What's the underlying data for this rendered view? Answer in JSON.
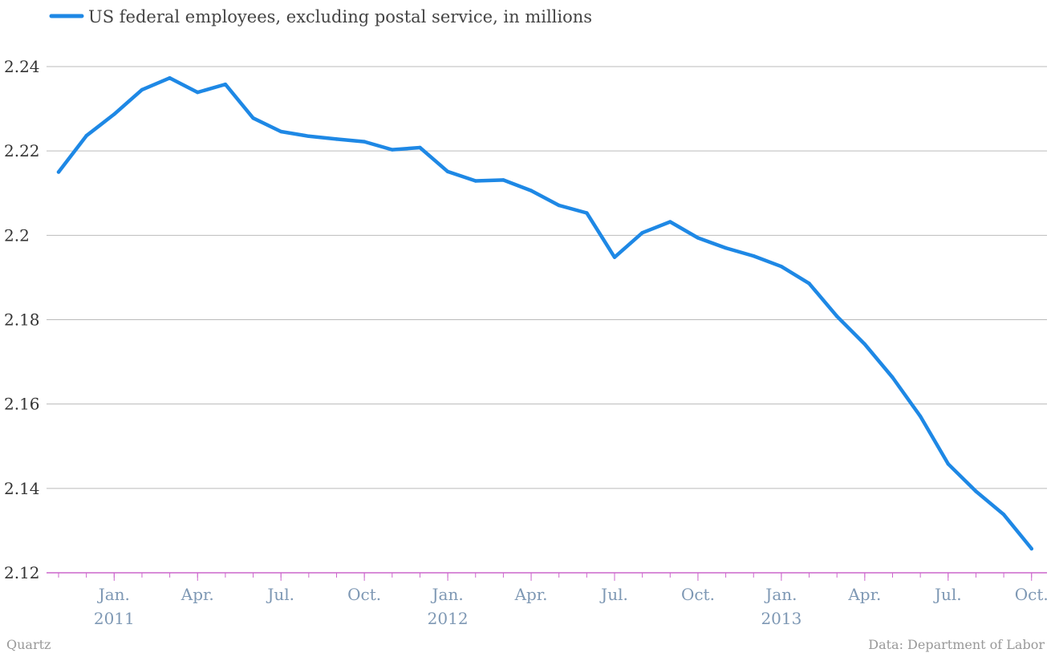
{
  "chart_data": {
    "type": "line",
    "series": [
      {
        "name": "US federal employees, excluding postal service, in millions",
        "color": "#1e88e5",
        "points": [
          {
            "x": "2010-11",
            "y": 2.215
          },
          {
            "x": "2010-12",
            "y": 2.2236
          },
          {
            "x": "2011-01",
            "y": 2.2287
          },
          {
            "x": "2011-02",
            "y": 2.2345
          },
          {
            "x": "2011-03",
            "y": 2.2373
          },
          {
            "x": "2011-04",
            "y": 2.2339
          },
          {
            "x": "2011-05",
            "y": 2.2358
          },
          {
            "x": "2011-06",
            "y": 2.2278
          },
          {
            "x": "2011-07",
            "y": 2.2246
          },
          {
            "x": "2011-08",
            "y": 2.2235
          },
          {
            "x": "2011-09",
            "y": 2.2228
          },
          {
            "x": "2011-10",
            "y": 2.2222
          },
          {
            "x": "2011-11",
            "y": 2.2203
          },
          {
            "x": "2011-12",
            "y": 2.2208
          },
          {
            "x": "2012-01",
            "y": 2.2151
          },
          {
            "x": "2012-02",
            "y": 2.2129
          },
          {
            "x": "2012-03",
            "y": 2.2131
          },
          {
            "x": "2012-04",
            "y": 2.2106
          },
          {
            "x": "2012-05",
            "y": 2.2071
          },
          {
            "x": "2012-06",
            "y": 2.2053
          },
          {
            "x": "2012-07",
            "y": 2.1948
          },
          {
            "x": "2012-08",
            "y": 2.2006
          },
          {
            "x": "2012-09",
            "y": 2.2032
          },
          {
            "x": "2012-10",
            "y": 2.1994
          },
          {
            "x": "2012-11",
            "y": 2.197
          },
          {
            "x": "2012-12",
            "y": 2.1951
          },
          {
            "x": "2013-01",
            "y": 2.1926
          },
          {
            "x": "2013-02",
            "y": 2.1886
          },
          {
            "x": "2013-03",
            "y": 2.1808
          },
          {
            "x": "2013-04",
            "y": 2.1742
          },
          {
            "x": "2013-05",
            "y": 2.1663
          },
          {
            "x": "2013-06",
            "y": 2.1571
          },
          {
            "x": "2013-07",
            "y": 2.1458
          },
          {
            "x": "2013-08",
            "y": 2.1393
          },
          {
            "x": "2013-09",
            "y": 2.1338
          },
          {
            "x": "2013-10",
            "y": 2.1257
          }
        ]
      }
    ],
    "ylim": [
      2.12,
      2.24
    ],
    "y_ticks": [
      "2.12",
      "2.14",
      "2.16",
      "2.18",
      "2.2",
      "2.22",
      "2.24"
    ],
    "x_ticks": [
      {
        "at": "2011-01",
        "label": "Jan.",
        "year": "2011"
      },
      {
        "at": "2011-04",
        "label": "Apr.",
        "year": ""
      },
      {
        "at": "2011-07",
        "label": "Jul.",
        "year": ""
      },
      {
        "at": "2011-10",
        "label": "Oct.",
        "year": ""
      },
      {
        "at": "2012-01",
        "label": "Jan.",
        "year": "2012"
      },
      {
        "at": "2012-04",
        "label": "Apr.",
        "year": ""
      },
      {
        "at": "2012-07",
        "label": "Jul.",
        "year": ""
      },
      {
        "at": "2012-10",
        "label": "Oct.",
        "year": ""
      },
      {
        "at": "2013-01",
        "label": "Jan.",
        "year": "2013"
      },
      {
        "at": "2013-04",
        "label": "Apr.",
        "year": ""
      },
      {
        "at": "2013-07",
        "label": "Jul.",
        "year": ""
      },
      {
        "at": "2013-10",
        "label": "Oct.",
        "year": ""
      }
    ],
    "grid": true,
    "legend_position": "top-left"
  },
  "footer": {
    "left": "Quartz",
    "right": "Data: Department of Labor"
  },
  "colors": {
    "line": "#1e88e5",
    "grid": "#bbbbbb",
    "baseline": "#cc66cc",
    "tick_label": "#7e98b4"
  }
}
